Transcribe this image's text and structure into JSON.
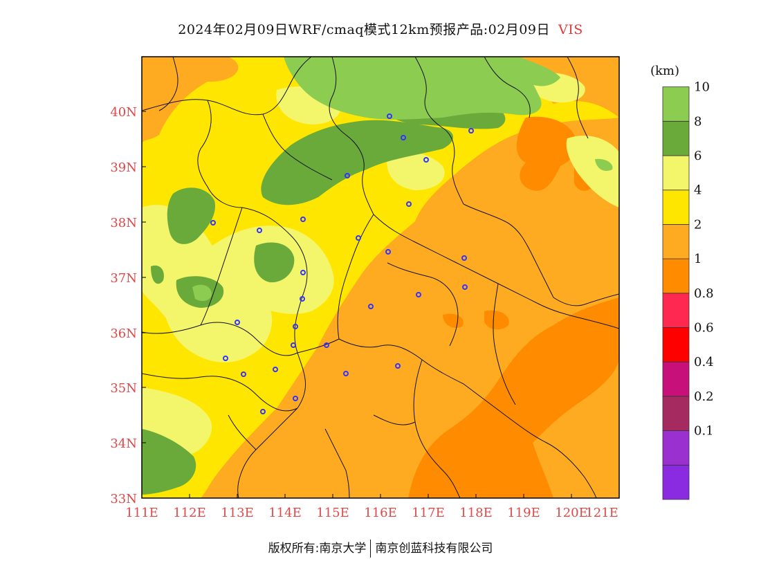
{
  "title": {
    "main": "2024年02月09日WRF/cmaq模式12km预报产品:02月09日",
    "variable": "VIS"
  },
  "legend": {
    "unit": "(km)",
    "bins": [
      {
        "color": "#8a2be2",
        "label": ""
      },
      {
        "color": "#9b30d0",
        "label": "0.1"
      },
      {
        "color": "#a52a60",
        "label": "0.2"
      },
      {
        "color": "#c8107a",
        "label": "0.4"
      },
      {
        "color": "#ff0000",
        "label": "0.6"
      },
      {
        "color": "#ff2850",
        "label": "0.8"
      },
      {
        "color": "#ff8c00",
        "label": "1"
      },
      {
        "color": "#ffab22",
        "label": "2"
      },
      {
        "color": "#ffe600",
        "label": "4"
      },
      {
        "color": "#f3f56a",
        "label": "6"
      },
      {
        "color": "#6aaa3a",
        "label": "8"
      },
      {
        "color": "#8ccc50",
        "label": "10"
      }
    ]
  },
  "axes": {
    "x_ticks": [
      "111E",
      "112E",
      "113E",
      "114E",
      "115E",
      "116E",
      "117E",
      "118E",
      "119E",
      "120E",
      "121E"
    ],
    "y_ticks": [
      "33N",
      "34N",
      "35N",
      "36N",
      "37N",
      "38N",
      "39N",
      "40N"
    ]
  },
  "footer": {
    "left": "版权所有:南京大学",
    "right": "南京创蓝科技有限公司"
  },
  "colors": {
    "accent": "#e04848",
    "station": "#3333ff"
  }
}
